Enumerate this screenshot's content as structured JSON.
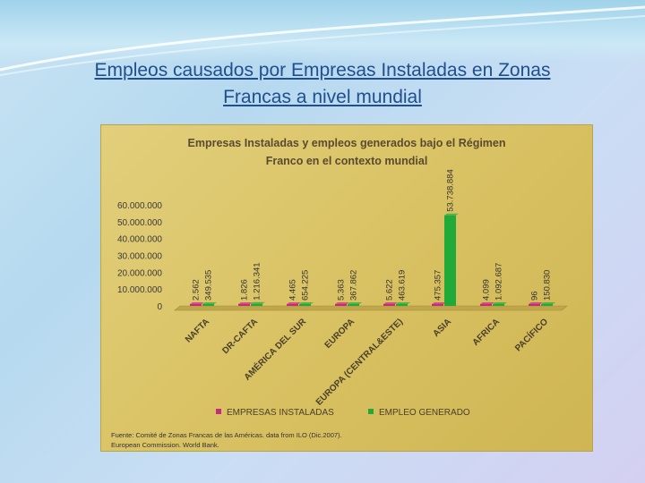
{
  "slide": {
    "title_line1": "Empleos causados por Empresas Instaladas en Zonas",
    "title_line2": "Francas a nivel mundial",
    "source_line1": "Fuente: Comité de Zonas Francas de las Américas. data from ILO (Dic.2007).",
    "source_line2": "European Commission. World Bank."
  },
  "chart_data": {
    "type": "bar",
    "title_line1": "Empresas Instaladas y empleos generados bajo el Régimen",
    "title_line2": "Franco en el contexto mundial",
    "categories": [
      "NAFTA",
      "DR-CAFTA",
      "AMÉRICA DEL SUR",
      "EUROPA",
      "EUROPA (CENTRAL&ESTE)",
      "ASIA",
      "AFRICA",
      "PACÍFICO"
    ],
    "series": [
      {
        "name": "EMPRESAS INSTALADAS",
        "color": "#c8287f",
        "values": [
          2562,
          1826,
          4465,
          5363,
          5622,
          475357,
          4099,
          96
        ],
        "labels": [
          "2.562",
          "1.826",
          "4.465",
          "5.363",
          "5.622",
          "475.357",
          "4.099",
          "96"
        ]
      },
      {
        "name": "EMPLEO GENERADO",
        "color": "#1faa3a",
        "values": [
          349535,
          1216341,
          654225,
          367862,
          463619,
          53738884,
          1092687,
          150830
        ],
        "labels": [
          "349.535",
          "1.216.341",
          "654.225",
          "367.862",
          "463.619",
          "53.738.884",
          "1.092.687",
          "150.830"
        ]
      }
    ],
    "yticks": [
      0,
      10000000,
      20000000,
      30000000,
      40000000,
      50000000,
      60000000
    ],
    "ytick_labels": [
      "0",
      "10.000.000",
      "20.000.000",
      "30.000.000",
      "40.000.000",
      "50.000.000",
      "60.000.000"
    ],
    "ylim": [
      0,
      60000000
    ],
    "legend_position": "bottom"
  }
}
